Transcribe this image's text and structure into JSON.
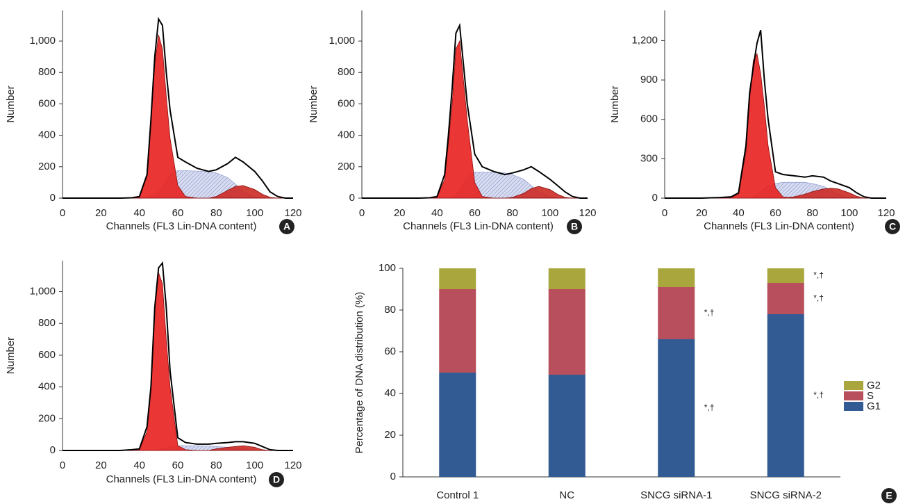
{
  "chart_data": [
    {
      "type": "area",
      "panel_label": "A",
      "x_label": "Channels (FL3 Lin-DNA content)",
      "y_label": "Number",
      "x": [
        0,
        20,
        30,
        36,
        40,
        44,
        46,
        48,
        50,
        52,
        54,
        56,
        60,
        64,
        70,
        76,
        80,
        86,
        90,
        94,
        100,
        104,
        108,
        112,
        116,
        120
      ],
      "xlim": [
        0,
        120
      ],
      "xticks": [
        0,
        20,
        40,
        60,
        80,
        100,
        120
      ],
      "ylim": [
        0,
        1195
      ],
      "yticks": [
        0,
        200,
        400,
        600,
        800,
        {
          "value": 1000,
          "label": "1,000"
        }
      ],
      "series": [
        {
          "style": "hatched",
          "color": "#9aa6d6",
          "values": [
            0,
            0,
            0,
            0,
            0,
            0,
            10,
            20,
            40,
            70,
            110,
            150,
            175,
            175,
            172,
            168,
            160,
            130,
            90,
            40,
            5,
            0,
            0,
            0,
            0,
            0
          ]
        },
        {
          "style": "area",
          "color": "#cc2a24",
          "values": [
            0,
            0,
            0,
            0,
            0,
            0,
            0,
            0,
            0,
            0,
            0,
            0,
            0,
            0,
            0,
            0,
            10,
            50,
            75,
            80,
            55,
            25,
            5,
            0,
            0,
            0
          ]
        },
        {
          "style": "area",
          "color": "#e8201e",
          "values": [
            0,
            0,
            0,
            0,
            5,
            140,
            500,
            850,
            1040,
            950,
            650,
            380,
            80,
            10,
            0,
            0,
            0,
            0,
            0,
            0,
            0,
            0,
            0,
            0,
            0,
            0
          ]
        },
        {
          "style": "line",
          "color": "#000000",
          "values": [
            0,
            0,
            0,
            2,
            10,
            150,
            500,
            900,
            1140,
            1100,
            800,
            560,
            260,
            230,
            190,
            170,
            180,
            220,
            260,
            230,
            170,
            110,
            40,
            10,
            0,
            0
          ]
        }
      ]
    },
    {
      "type": "area",
      "panel_label": "B",
      "x_label": "Channels (FL3 Lin-DNA content)",
      "y_label": "Number",
      "x": [
        0,
        20,
        30,
        36,
        40,
        44,
        46,
        48,
        50,
        52,
        54,
        56,
        60,
        64,
        70,
        76,
        80,
        86,
        90,
        94,
        100,
        104,
        108,
        112,
        116,
        120
      ],
      "xlim": [
        0,
        120
      ],
      "xticks": [
        0,
        20,
        40,
        60,
        80,
        100,
        120
      ],
      "ylim": [
        0,
        1195
      ],
      "yticks": [
        0,
        200,
        400,
        600,
        800,
        {
          "value": 1000,
          "label": "1,000"
        }
      ],
      "series": [
        {
          "style": "hatched",
          "color": "#9aa6d6",
          "values": [
            0,
            0,
            0,
            0,
            0,
            0,
            0,
            10,
            20,
            50,
            90,
            130,
            165,
            165,
            165,
            160,
            150,
            120,
            80,
            40,
            10,
            0,
            0,
            0,
            0,
            0
          ]
        },
        {
          "style": "area",
          "color": "#cc2a24",
          "values": [
            0,
            0,
            0,
            0,
            0,
            0,
            0,
            0,
            0,
            0,
            0,
            0,
            0,
            0,
            0,
            0,
            5,
            30,
            60,
            75,
            55,
            25,
            5,
            0,
            0,
            0
          ]
        },
        {
          "style": "area",
          "color": "#e8201e",
          "values": [
            0,
            0,
            0,
            0,
            5,
            120,
            350,
            600,
            950,
            1000,
            750,
            500,
            100,
            10,
            0,
            0,
            0,
            0,
            0,
            0,
            0,
            0,
            0,
            0,
            0,
            0
          ]
        },
        {
          "style": "line",
          "color": "#000000",
          "values": [
            0,
            0,
            0,
            2,
            10,
            150,
            400,
            700,
            1050,
            1100,
            850,
            600,
            280,
            200,
            170,
            150,
            160,
            180,
            200,
            170,
            120,
            80,
            40,
            10,
            0,
            0
          ]
        }
      ]
    },
    {
      "type": "area",
      "panel_label": "C",
      "x_label": "Channels (FL3 Lin-DNA content)",
      "y_label": "Number",
      "x": [
        0,
        20,
        30,
        36,
        40,
        44,
        46,
        48,
        50,
        52,
        54,
        56,
        60,
        64,
        70,
        76,
        80,
        86,
        90,
        94,
        100,
        104,
        108,
        112,
        116,
        120
      ],
      "xlim": [
        0,
        120
      ],
      "xticks": [
        0,
        20,
        40,
        60,
        80,
        100,
        120
      ],
      "ylim": [
        0,
        1430
      ],
      "yticks": [
        0,
        300,
        600,
        900,
        {
          "value": 1200,
          "label": "1,200"
        }
      ],
      "series": [
        {
          "style": "hatched",
          "color": "#9aa6d6",
          "values": [
            0,
            0,
            0,
            0,
            0,
            0,
            0,
            10,
            30,
            50,
            70,
            90,
            110,
            120,
            120,
            120,
            110,
            90,
            60,
            30,
            5,
            0,
            0,
            0,
            0,
            0
          ]
        },
        {
          "style": "area",
          "color": "#cc2a24",
          "values": [
            0,
            0,
            0,
            0,
            0,
            0,
            0,
            0,
            0,
            0,
            0,
            0,
            0,
            0,
            10,
            30,
            50,
            70,
            75,
            70,
            40,
            15,
            0,
            0,
            0,
            0
          ]
        },
        {
          "style": "area",
          "color": "#e8201e",
          "values": [
            0,
            0,
            0,
            5,
            30,
            350,
            750,
            1050,
            1100,
            950,
            700,
            400,
            80,
            10,
            0,
            0,
            0,
            0,
            0,
            0,
            0,
            0,
            0,
            0,
            0,
            0
          ]
        },
        {
          "style": "line",
          "color": "#000000",
          "values": [
            0,
            0,
            5,
            10,
            40,
            400,
            800,
            1000,
            1180,
            1280,
            900,
            600,
            200,
            180,
            170,
            160,
            170,
            160,
            130,
            110,
            80,
            40,
            10,
            0,
            0,
            0
          ]
        }
      ]
    },
    {
      "type": "area",
      "panel_label": "D",
      "x_label": "Channels (FL3 Lin-DNA content)",
      "y_label": "Number",
      "x": [
        0,
        20,
        30,
        36,
        40,
        44,
        46,
        48,
        50,
        52,
        54,
        56,
        60,
        64,
        70,
        76,
        80,
        86,
        90,
        94,
        100,
        104,
        108,
        112,
        116,
        120
      ],
      "xlim": [
        0,
        120
      ],
      "xticks": [
        0,
        20,
        40,
        60,
        80,
        100,
        120
      ],
      "ylim": [
        0,
        1195
      ],
      "yticks": [
        0,
        200,
        400,
        600,
        800,
        {
          "value": 1000,
          "label": "1,000"
        }
      ],
      "series": [
        {
          "style": "hatched",
          "color": "#9aa6d6",
          "values": [
            0,
            0,
            0,
            0,
            0,
            0,
            0,
            0,
            5,
            10,
            15,
            20,
            30,
            30,
            30,
            28,
            25,
            20,
            15,
            10,
            0,
            0,
            0,
            0,
            0,
            0
          ]
        },
        {
          "style": "area",
          "color": "#cc2a24",
          "values": [
            0,
            0,
            0,
            0,
            0,
            0,
            0,
            0,
            0,
            0,
            0,
            0,
            0,
            0,
            0,
            0,
            10,
            20,
            25,
            30,
            20,
            5,
            0,
            0,
            0,
            0
          ]
        },
        {
          "style": "area",
          "color": "#e8201e",
          "values": [
            0,
            0,
            0,
            0,
            5,
            120,
            400,
            900,
            1120,
            1050,
            700,
            400,
            30,
            5,
            0,
            0,
            0,
            0,
            0,
            0,
            0,
            0,
            0,
            0,
            0,
            0
          ]
        },
        {
          "style": "line",
          "color": "#000000",
          "values": [
            0,
            0,
            0,
            5,
            10,
            150,
            400,
            900,
            1150,
            1180,
            900,
            500,
            80,
            50,
            40,
            40,
            45,
            50,
            55,
            55,
            45,
            25,
            5,
            0,
            0,
            0
          ]
        }
      ]
    },
    {
      "type": "stacked_bar",
      "panel_label": "E",
      "y_label": "Percentage of DNA distribution (%)",
      "categories": [
        "Control 1",
        "NC",
        "SNCG siRNA-1",
        "SNCG siRNA-2"
      ],
      "ylim": [
        0,
        100
      ],
      "yticks": [
        0,
        20,
        40,
        60,
        80,
        100
      ],
      "series": [
        {
          "name": "G1",
          "color": "#325a93",
          "values": [
            50,
            49,
            66,
            78
          ]
        },
        {
          "name": "S",
          "color": "#b84f5c",
          "values": [
            40,
            41,
            25,
            15
          ]
        },
        {
          "name": "G2",
          "color": "#a8a63c",
          "values": [
            10,
            10,
            9,
            7
          ]
        }
      ],
      "annotations": [
        {
          "text": "*,†",
          "category": "SNCG siRNA-1",
          "series": "G1"
        },
        {
          "text": "*,†",
          "category": "SNCG siRNA-1",
          "series": "S"
        },
        {
          "text": "*,†",
          "category": "SNCG siRNA-2",
          "series": "G1"
        },
        {
          "text": "*,†",
          "category": "SNCG siRNA-2",
          "series": "S"
        },
        {
          "text": "*,†",
          "category": "SNCG siRNA-2",
          "series": "G2"
        }
      ]
    }
  ]
}
